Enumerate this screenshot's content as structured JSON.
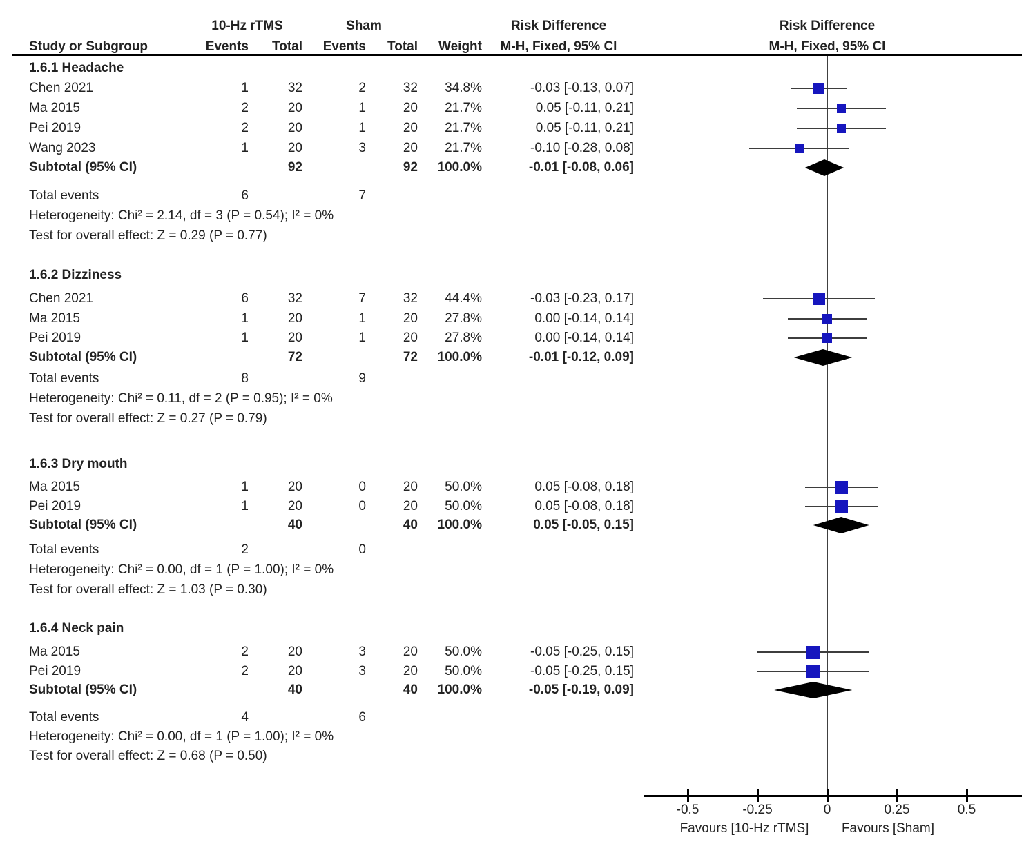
{
  "header": {
    "study_col": "Study or Subgroup",
    "group1": "10-Hz rTMS",
    "group2": "Sham",
    "events_col1": "Events",
    "total_col1": "Total",
    "events_col2": "Events",
    "total_col2": "Total",
    "weight_col": "Weight",
    "effect_title": "Risk Difference",
    "effect_subtitle": "M-H, Fixed, 95% CI",
    "plot_title": "Risk Difference",
    "plot_subtitle": "M-H, Fixed, 95% CI"
  },
  "colors": {
    "marker_blue": "#1616be",
    "diamond_black": "#000000",
    "line_gray": "#3d3d3d"
  },
  "chart_data": {
    "type": "forest",
    "effect_measure": "Risk Difference",
    "method": "M-H, Fixed, 95% CI",
    "axis": {
      "ticks": [
        -0.5,
        -0.25,
        0,
        0.25,
        0.5
      ],
      "tick_labels": [
        "-0.5",
        "-0.25",
        "0",
        "0.25",
        "0.5"
      ],
      "favours_left": "Favours [10-Hz rTMS]",
      "favours_right": "Favours [Sham]"
    },
    "sections": [
      {
        "label": "1.6.1 Headache",
        "studies": [
          {
            "study": "Chen 2021",
            "events1": "1",
            "total1": "32",
            "events2": "2",
            "total2": "32",
            "weight": "34.8%",
            "ci_text": "-0.03 [-0.13, 0.07]",
            "est": -0.03,
            "lo": -0.13,
            "hi": 0.07,
            "weight_pct": 34.8
          },
          {
            "study": "Ma 2015",
            "events1": "2",
            "total1": "20",
            "events2": "1",
            "total2": "20",
            "weight": "21.7%",
            "ci_text": "0.05 [-0.11, 0.21]",
            "est": 0.05,
            "lo": -0.11,
            "hi": 0.21,
            "weight_pct": 21.7
          },
          {
            "study": "Pei 2019",
            "events1": "2",
            "total1": "20",
            "events2": "1",
            "total2": "20",
            "weight": "21.7%",
            "ci_text": "0.05 [-0.11, 0.21]",
            "est": 0.05,
            "lo": -0.11,
            "hi": 0.21,
            "weight_pct": 21.7
          },
          {
            "study": "Wang 2023",
            "events1": "1",
            "total1": "20",
            "events2": "3",
            "total2": "20",
            "weight": "21.7%",
            "ci_text": "-0.10 [-0.28, 0.08]",
            "est": -0.1,
            "lo": -0.28,
            "hi": 0.08,
            "weight_pct": 21.7
          }
        ],
        "subtotal": {
          "label": "Subtotal (95% CI)",
          "total1": "92",
          "total2": "92",
          "weight": "100.0%",
          "ci_text": "-0.01 [-0.08, 0.06]",
          "est": -0.01,
          "lo": -0.08,
          "hi": 0.06
        },
        "total_events": {
          "label": "Total events",
          "events1": "6",
          "events2": "7"
        },
        "heterogeneity": "Heterogeneity: Chi² = 2.14, df = 3 (P = 0.54); I² = 0%",
        "overall_effect": "Test for overall effect: Z = 0.29 (P = 0.77)"
      },
      {
        "label": "1.6.2 Dizziness",
        "studies": [
          {
            "study": "Chen 2021",
            "events1": "6",
            "total1": "32",
            "events2": "7",
            "total2": "32",
            "weight": "44.4%",
            "ci_text": "-0.03 [-0.23, 0.17]",
            "est": -0.03,
            "lo": -0.23,
            "hi": 0.17,
            "weight_pct": 44.4
          },
          {
            "study": "Ma 2015",
            "events1": "1",
            "total1": "20",
            "events2": "1",
            "total2": "20",
            "weight": "27.8%",
            "ci_text": "0.00 [-0.14, 0.14]",
            "est": 0.0,
            "lo": -0.14,
            "hi": 0.14,
            "weight_pct": 27.8
          },
          {
            "study": "Pei 2019",
            "events1": "1",
            "total1": "20",
            "events2": "1",
            "total2": "20",
            "weight": "27.8%",
            "ci_text": "0.00 [-0.14, 0.14]",
            "est": 0.0,
            "lo": -0.14,
            "hi": 0.14,
            "weight_pct": 27.8
          }
        ],
        "subtotal": {
          "label": "Subtotal (95% CI)",
          "total1": "72",
          "total2": "72",
          "weight": "100.0%",
          "ci_text": "-0.01 [-0.12, 0.09]",
          "est": -0.01,
          "lo": -0.12,
          "hi": 0.09
        },
        "total_events": {
          "label": "Total events",
          "events1": "8",
          "events2": "9"
        },
        "heterogeneity": "Heterogeneity: Chi² = 0.11, df = 2 (P = 0.95); I² = 0%",
        "overall_effect": "Test for overall effect: Z = 0.27 (P = 0.79)"
      },
      {
        "label": "1.6.3 Dry mouth",
        "studies": [
          {
            "study": "Ma 2015",
            "events1": "1",
            "total1": "20",
            "events2": "0",
            "total2": "20",
            "weight": "50.0%",
            "ci_text": "0.05 [-0.08, 0.18]",
            "est": 0.05,
            "lo": -0.08,
            "hi": 0.18,
            "weight_pct": 50.0
          },
          {
            "study": "Pei 2019",
            "events1": "1",
            "total1": "20",
            "events2": "0",
            "total2": "20",
            "weight": "50.0%",
            "ci_text": "0.05 [-0.08, 0.18]",
            "est": 0.05,
            "lo": -0.08,
            "hi": 0.18,
            "weight_pct": 50.0
          }
        ],
        "subtotal": {
          "label": "Subtotal (95% CI)",
          "total1": "40",
          "total2": "40",
          "weight": "100.0%",
          "ci_text": "0.05 [-0.05, 0.15]",
          "est": 0.05,
          "lo": -0.05,
          "hi": 0.15
        },
        "total_events": {
          "label": "Total events",
          "events1": "2",
          "events2": "0"
        },
        "heterogeneity": "Heterogeneity: Chi² = 0.00, df = 1 (P = 1.00); I² = 0%",
        "overall_effect": "Test for overall effect: Z = 1.03 (P = 0.30)"
      },
      {
        "label": "1.6.4 Neck pain",
        "studies": [
          {
            "study": "Ma 2015",
            "events1": "2",
            "total1": "20",
            "events2": "3",
            "total2": "20",
            "weight": "50.0%",
            "ci_text": "-0.05 [-0.25, 0.15]",
            "est": -0.05,
            "lo": -0.25,
            "hi": 0.15,
            "weight_pct": 50.0
          },
          {
            "study": "Pei 2019",
            "events1": "2",
            "total1": "20",
            "events2": "3",
            "total2": "20",
            "weight": "50.0%",
            "ci_text": "-0.05 [-0.25, 0.15]",
            "est": -0.05,
            "lo": -0.25,
            "hi": 0.15,
            "weight_pct": 50.0
          }
        ],
        "subtotal": {
          "label": "Subtotal (95% CI)",
          "total1": "40",
          "total2": "40",
          "weight": "100.0%",
          "ci_text": "-0.05 [-0.19, 0.09]",
          "est": -0.05,
          "lo": -0.19,
          "hi": 0.09
        },
        "total_events": {
          "label": "Total events",
          "events1": "4",
          "events2": "6"
        },
        "heterogeneity": "Heterogeneity: Chi² = 0.00, df = 1 (P = 1.00); I² = 0%",
        "overall_effect": "Test for overall effect: Z = 0.68 (P = 0.50)"
      }
    ]
  }
}
